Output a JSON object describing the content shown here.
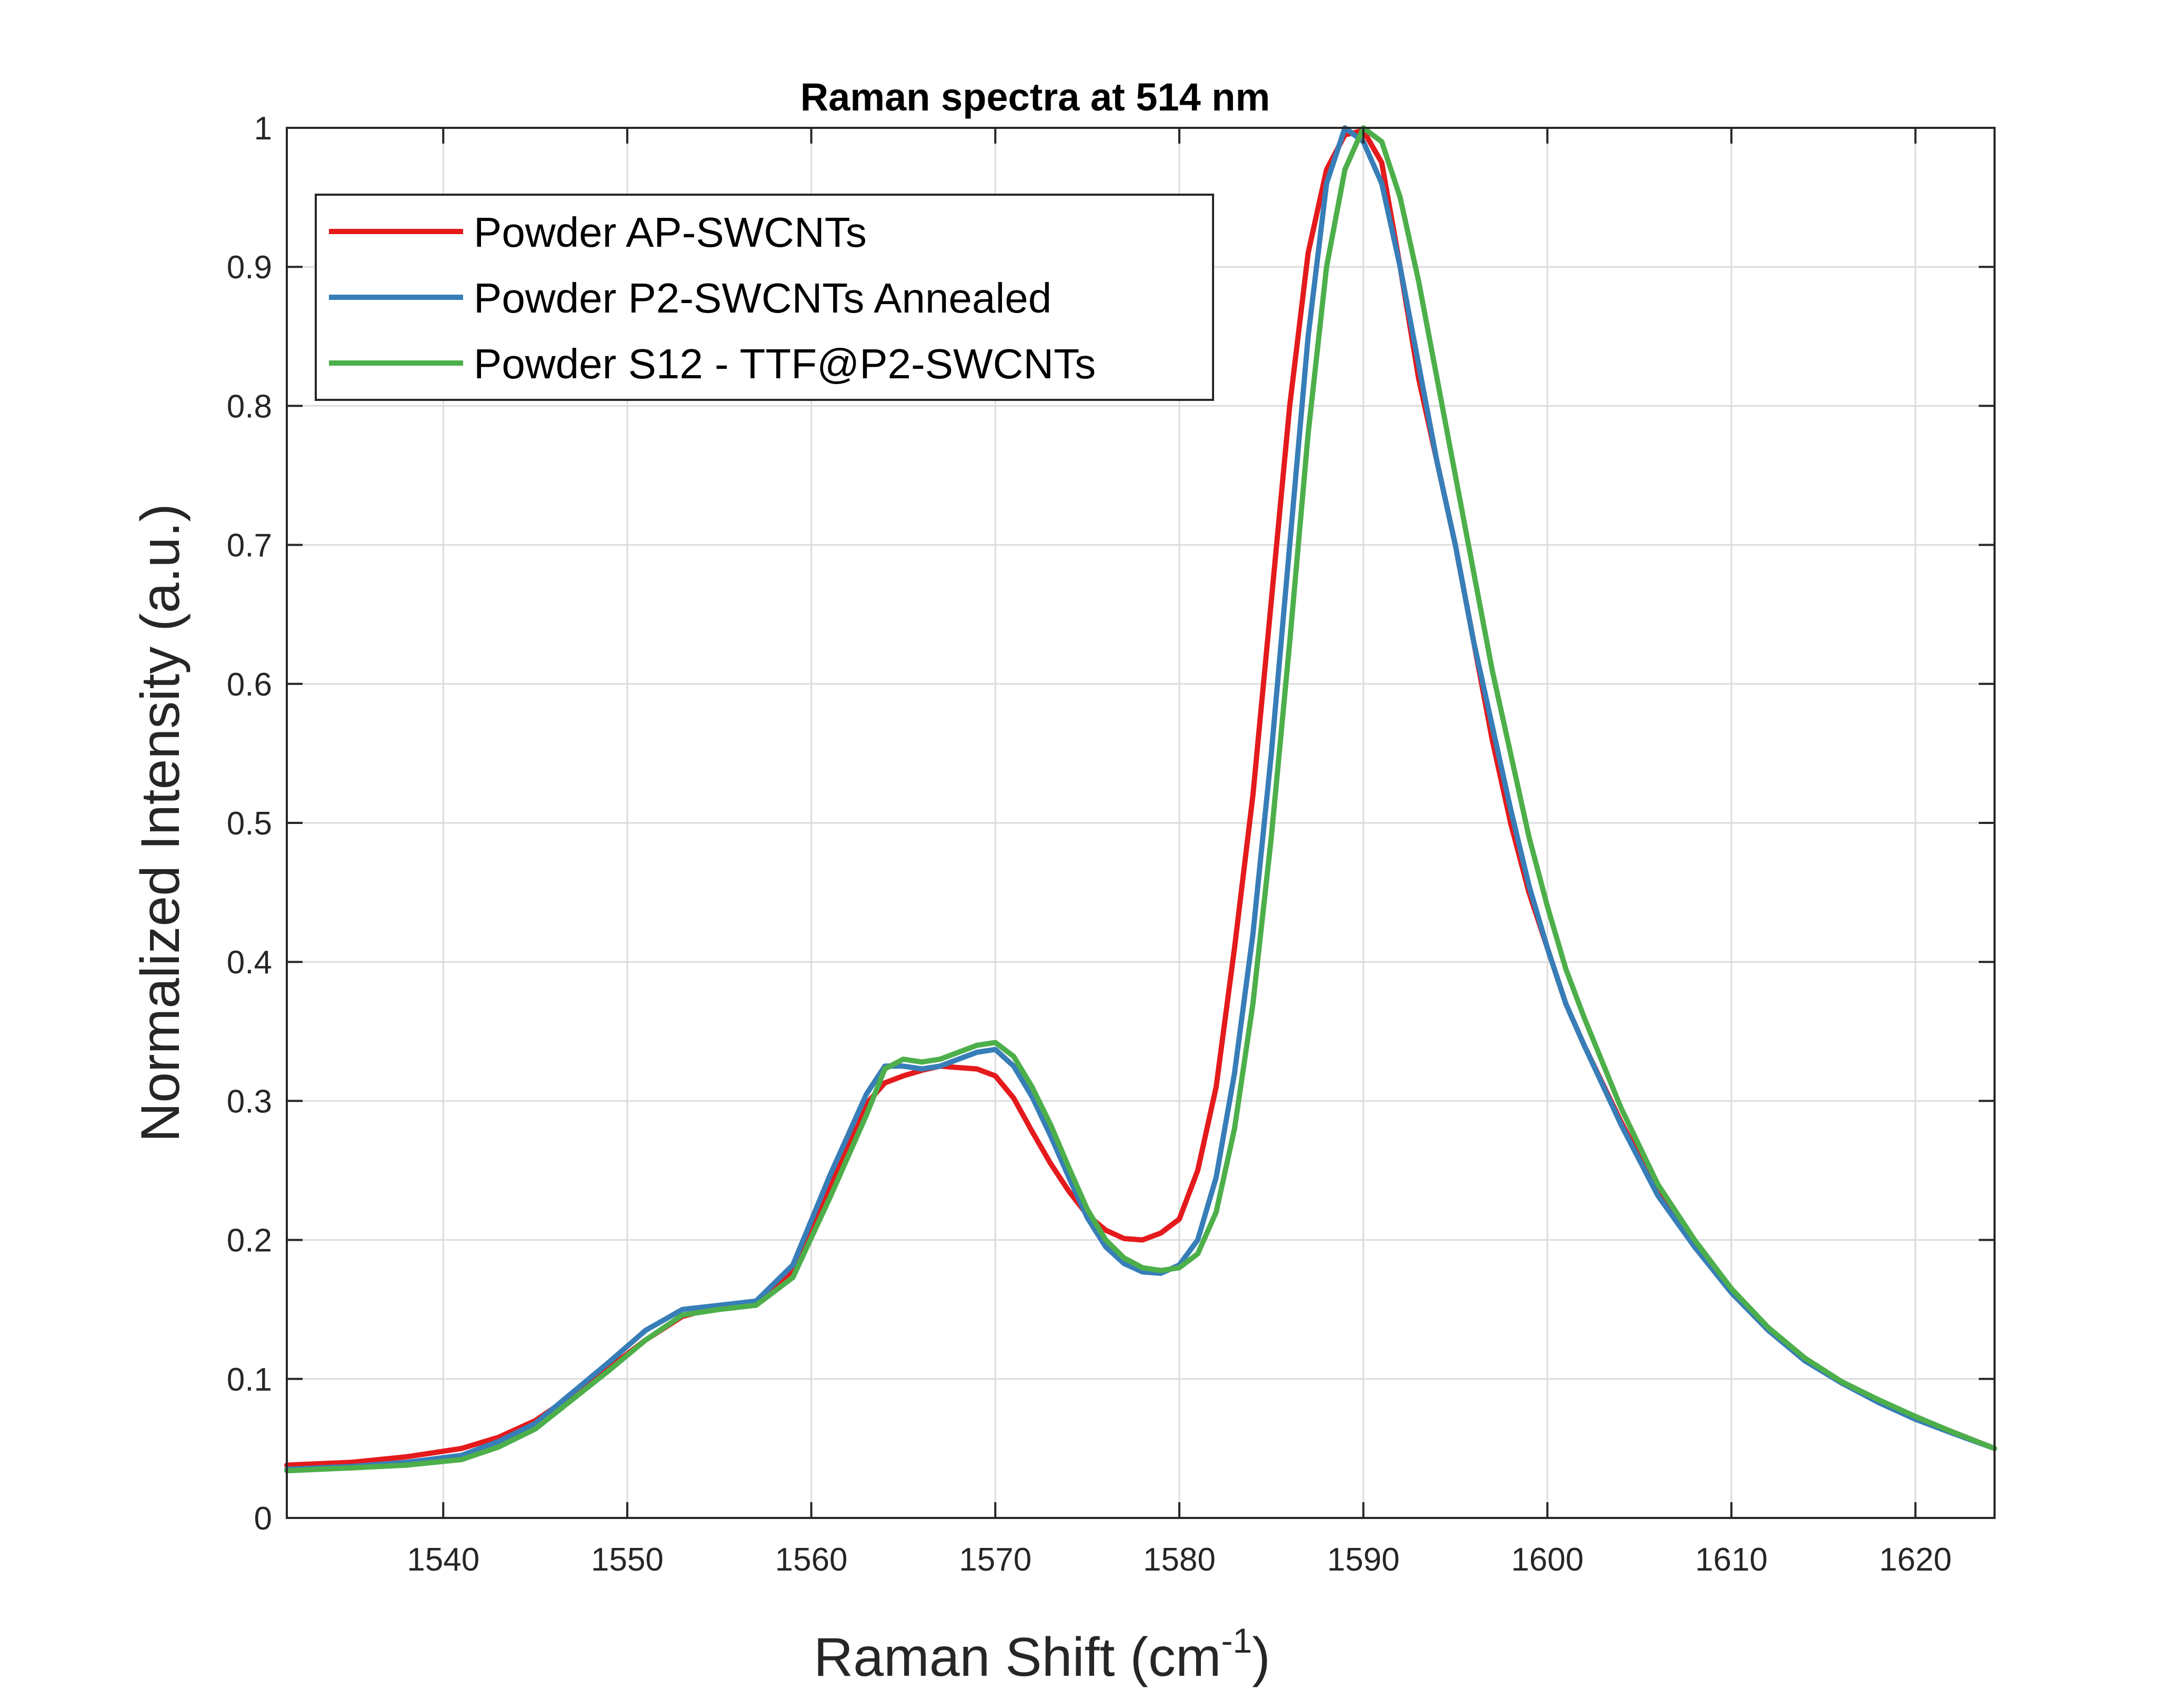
{
  "chart_data": {
    "type": "line",
    "title": "Raman spectra at 514 nm",
    "xlabel": "Raman Shift (cm",
    "xlabel_superscript": "-1",
    "xlabel_suffix": ")",
    "ylabel": "Normalized Intensity (a.u.)",
    "xlim": [
      1531.5,
      1624.3
    ],
    "ylim": [
      0,
      1
    ],
    "xticks": [
      1540,
      1550,
      1560,
      1570,
      1580,
      1590,
      1600,
      1610,
      1620
    ],
    "xtick_labels": [
      "1540",
      "1550",
      "1560",
      "1570",
      "1580",
      "1590",
      "1600",
      "1610",
      "1620"
    ],
    "yticks": [
      0,
      0.1,
      0.2,
      0.3,
      0.4,
      0.5,
      0.6,
      0.7,
      0.8,
      0.9,
      1
    ],
    "ytick_labels": [
      "0",
      "0.1",
      "0.2",
      "0.3",
      "0.4",
      "0.5",
      "0.6",
      "0.7",
      "0.8",
      "0.9",
      "1"
    ],
    "grid": true,
    "legend_position": "top-left",
    "x": [
      1531.5,
      1535,
      1538,
      1541,
      1543,
      1545,
      1547,
      1549,
      1551,
      1553,
      1555,
      1557,
      1559,
      1561,
      1563,
      1564,
      1565,
      1566,
      1567,
      1568,
      1569,
      1570,
      1571,
      1572,
      1573,
      1574,
      1575,
      1576,
      1577,
      1578,
      1579,
      1580,
      1581,
      1582,
      1583,
      1584,
      1585,
      1586,
      1587,
      1588,
      1589,
      1590,
      1591,
      1592,
      1593,
      1594,
      1595,
      1596,
      1597,
      1598,
      1599,
      1600,
      1601,
      1602,
      1604,
      1606,
      1608,
      1610,
      1612,
      1614,
      1616,
      1618,
      1620,
      1622,
      1624.3
    ],
    "series": [
      {
        "name": "Powder AP-SWCNTs",
        "color": "#e41a1c",
        "values": [
          0.038,
          0.04,
          0.044,
          0.05,
          0.058,
          0.07,
          0.088,
          0.108,
          0.128,
          0.145,
          0.152,
          0.156,
          0.178,
          0.238,
          0.298,
          0.313,
          0.318,
          0.322,
          0.325,
          0.324,
          0.323,
          0.318,
          0.302,
          0.278,
          0.255,
          0.235,
          0.218,
          0.207,
          0.201,
          0.2,
          0.205,
          0.215,
          0.25,
          0.31,
          0.41,
          0.52,
          0.66,
          0.8,
          0.91,
          0.97,
          0.995,
          0.998,
          0.975,
          0.9,
          0.82,
          0.76,
          0.7,
          0.63,
          0.56,
          0.5,
          0.45,
          0.41,
          0.37,
          0.34,
          0.285,
          0.235,
          0.195,
          0.163,
          0.135,
          0.114,
          0.097,
          0.084,
          0.072,
          0.062,
          0.05
        ]
      },
      {
        "name": "Powder P2-SWCNTs Annealed",
        "color": "#377eb8",
        "values": [
          0.035,
          0.037,
          0.04,
          0.045,
          0.055,
          0.068,
          0.09,
          0.112,
          0.135,
          0.15,
          0.153,
          0.156,
          0.182,
          0.246,
          0.305,
          0.325,
          0.325,
          0.323,
          0.325,
          0.33,
          0.335,
          0.337,
          0.325,
          0.303,
          0.275,
          0.245,
          0.216,
          0.195,
          0.183,
          0.177,
          0.176,
          0.182,
          0.2,
          0.245,
          0.32,
          0.42,
          0.55,
          0.7,
          0.85,
          0.96,
          1.0,
          0.99,
          0.96,
          0.9,
          0.83,
          0.76,
          0.7,
          0.63,
          0.57,
          0.51,
          0.455,
          0.41,
          0.37,
          0.34,
          0.283,
          0.232,
          0.195,
          0.162,
          0.135,
          0.113,
          0.097,
          0.083,
          0.071,
          0.061,
          0.05
        ]
      },
      {
        "name": "Powder S12 - TTF@P2-SWCNTs",
        "color": "#4daf4a",
        "values": [
          0.034,
          0.036,
          0.038,
          0.042,
          0.051,
          0.064,
          0.085,
          0.106,
          0.128,
          0.146,
          0.15,
          0.153,
          0.173,
          0.23,
          0.29,
          0.323,
          0.33,
          0.328,
          0.33,
          0.335,
          0.34,
          0.342,
          0.332,
          0.31,
          0.283,
          0.252,
          0.222,
          0.2,
          0.187,
          0.18,
          0.178,
          0.18,
          0.19,
          0.22,
          0.28,
          0.37,
          0.49,
          0.63,
          0.78,
          0.9,
          0.97,
          1.0,
          0.99,
          0.95,
          0.89,
          0.82,
          0.75,
          0.68,
          0.61,
          0.55,
          0.49,
          0.44,
          0.395,
          0.36,
          0.295,
          0.24,
          0.2,
          0.165,
          0.137,
          0.115,
          0.098,
          0.085,
          0.073,
          0.062,
          0.05
        ]
      }
    ]
  }
}
